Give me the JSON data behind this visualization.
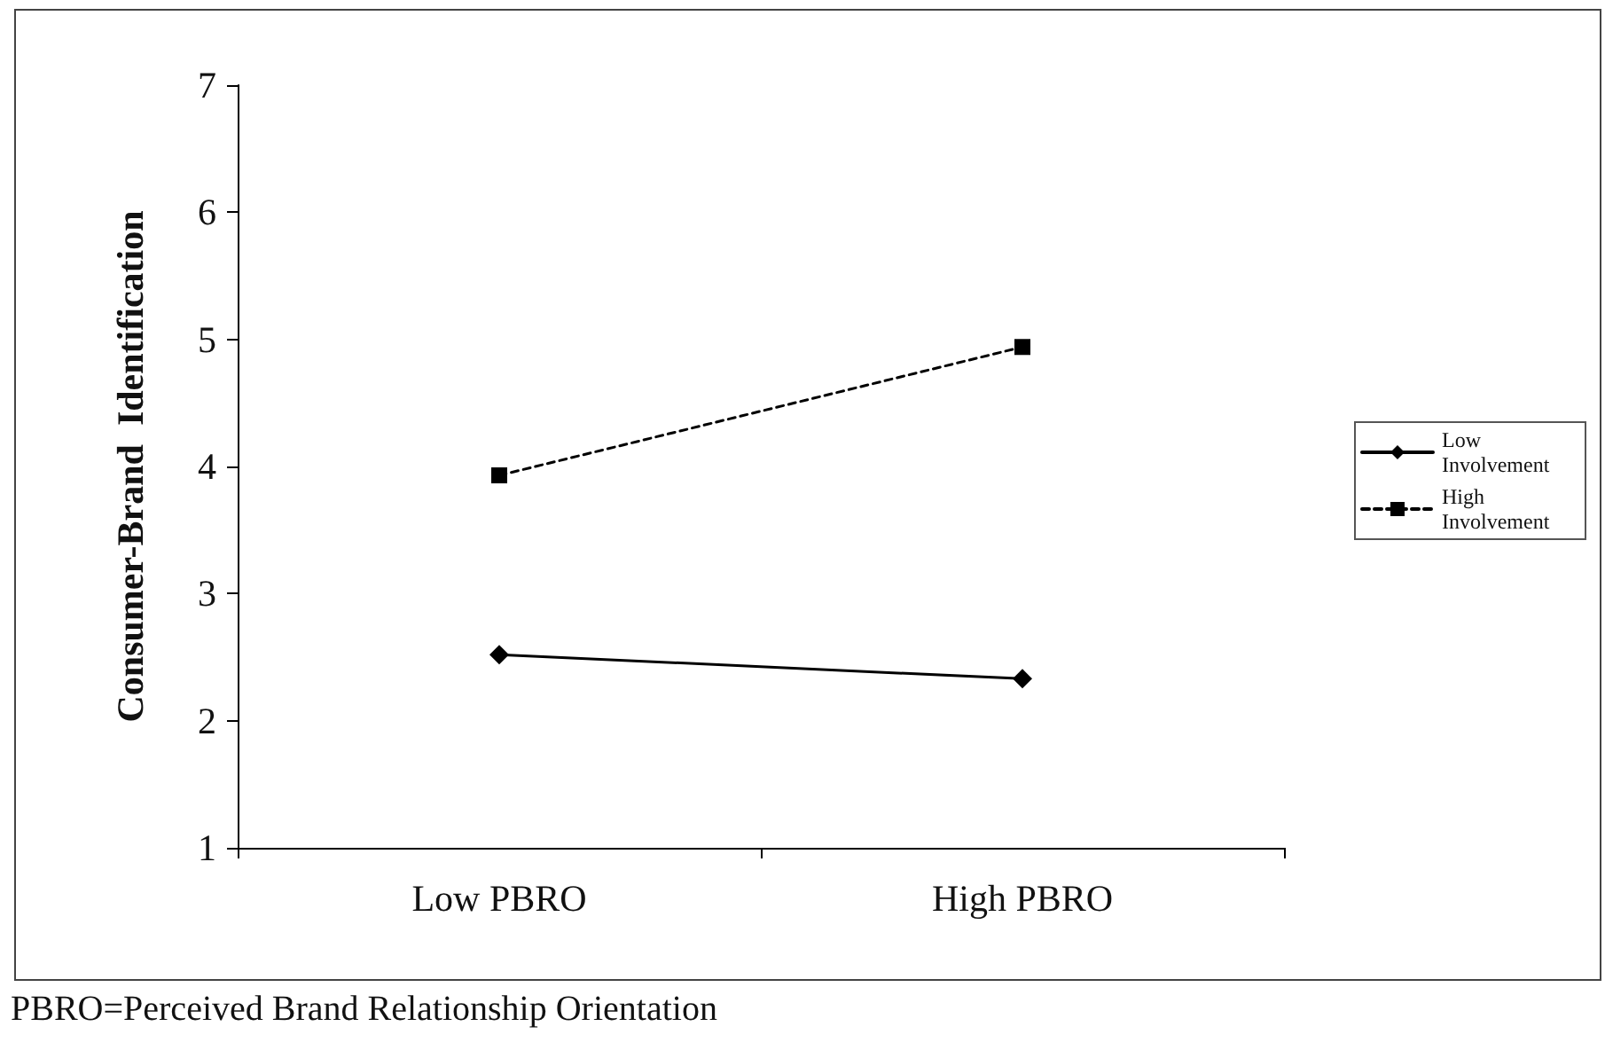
{
  "chart_data": {
    "type": "line",
    "ylabel": "Consumer-Brand  Identification",
    "categories": [
      "Low PBRO",
      "High PBRO"
    ],
    "series": [
      {
        "name": "Low Involvement",
        "color": "#000000",
        "values": [
          2.52,
          2.33
        ],
        "marker": "diamond",
        "line_style": "solid"
      },
      {
        "name": "High Involvement",
        "color": "#000000",
        "values": [
          3.93,
          4.94
        ],
        "marker": "square",
        "line_style": "dashed"
      }
    ],
    "ylim": [
      1,
      7
    ],
    "yticks": [
      1,
      2,
      3,
      4,
      5,
      6,
      7
    ],
    "grid": false,
    "legend": "right",
    "annotations": [
      "PBRO=Perceived Brand Relationship Orientation"
    ]
  }
}
